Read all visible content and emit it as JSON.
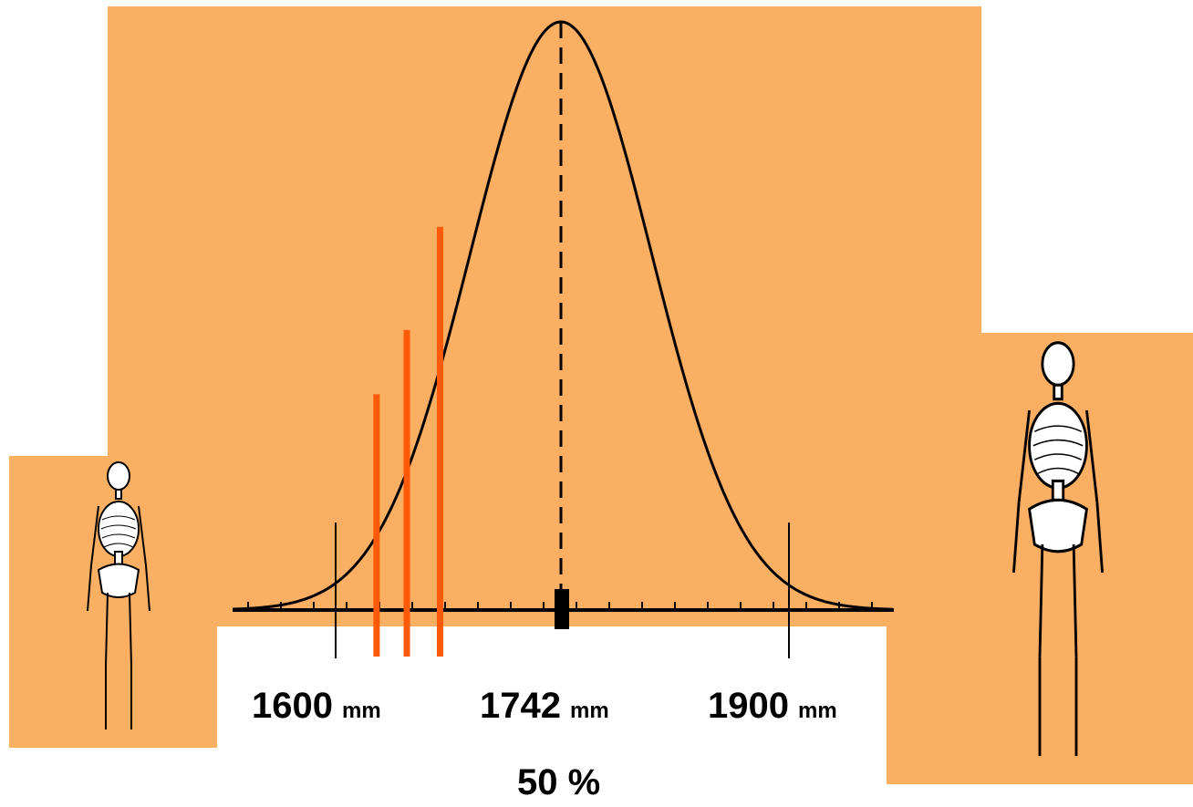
{
  "distribution": {
    "mean": 1742,
    "labels": [
      {
        "value": "1600",
        "unit": "mm"
      },
      {
        "value": "1742",
        "unit": "mm"
      },
      {
        "value": "1900",
        "unit": "mm"
      }
    ],
    "percent_label": "50 %",
    "highlight_lines_mm": [
      1620,
      1640,
      1662
    ],
    "curve_color": "#000000",
    "highlight_color": "#FF5A0A",
    "background_color": "#FBAF62"
  },
  "figures": [
    {
      "icon": "skeleton-icon",
      "size": "small"
    },
    {
      "icon": "skeleton-icon",
      "size": "large"
    }
  ]
}
